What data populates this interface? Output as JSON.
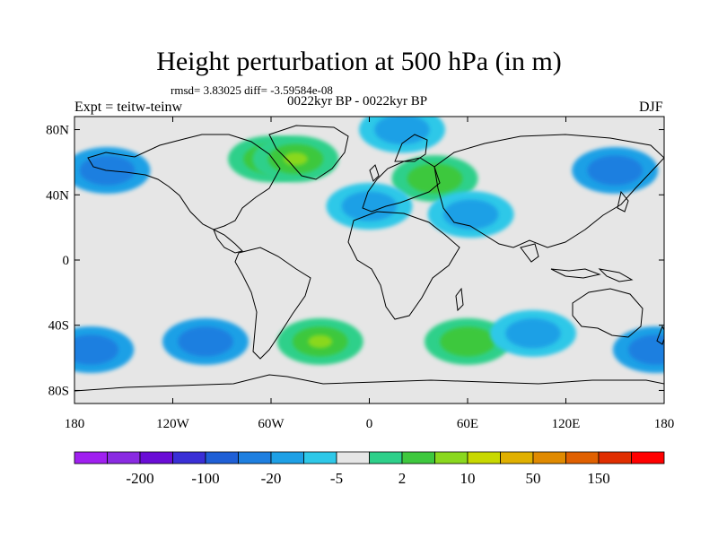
{
  "title": "Height perturbation at 500 hPa (in m)",
  "stats_line": "rmsd= 3.83025 diff= -3.59584e-08",
  "period_label": "0022kyr BP - 0022kyr BP",
  "expt_label": "Expt = teitw-teinw",
  "season_label": "DJF",
  "map": {
    "lat_ticks": [
      {
        "value": 80,
        "label": "80N"
      },
      {
        "value": 40,
        "label": "40N"
      },
      {
        "value": 0,
        "label": "0"
      },
      {
        "value": -40,
        "label": "40S"
      },
      {
        "value": -80,
        "label": "80S"
      }
    ],
    "lon_ticks": [
      {
        "value": -180,
        "label": "180"
      },
      {
        "value": -120,
        "label": "120W"
      },
      {
        "value": -60,
        "label": "60W"
      },
      {
        "value": 0,
        "label": "0"
      },
      {
        "value": 60,
        "label": "60E"
      },
      {
        "value": 120,
        "label": "120E"
      },
      {
        "value": 180,
        "label": "180"
      }
    ],
    "background_color": "#e6e6e6",
    "anomalies": [
      {
        "name": "arctic-canada-greenland-high",
        "lon": -60,
        "lat": 62,
        "level": 10
      },
      {
        "name": "greenland-peak",
        "lon": -45,
        "lat": 62,
        "level": 20
      },
      {
        "name": "north-pacific-low",
        "lon": -160,
        "lat": 55,
        "level": -20
      },
      {
        "name": "siberia-low",
        "lon": 150,
        "lat": 55,
        "level": -20
      },
      {
        "name": "europe-high",
        "lon": 40,
        "lat": 50,
        "level": 10
      },
      {
        "name": "nw-africa-low",
        "lon": 0,
        "lat": 33,
        "level": -5
      },
      {
        "name": "middle-east-low",
        "lon": 62,
        "lat": 28,
        "level": -5
      },
      {
        "name": "arctic-east-low",
        "lon": 20,
        "lat": 80,
        "level": -5
      },
      {
        "name": "south-pacific-low",
        "lon": -100,
        "lat": -50,
        "level": -20
      },
      {
        "name": "south-atlantic-high",
        "lon": -30,
        "lat": -50,
        "level": 20
      },
      {
        "name": "southern-ocean-high",
        "lon": 60,
        "lat": -50,
        "level": 10
      },
      {
        "name": "indian-ocean-low",
        "lon": 100,
        "lat": -45,
        "level": -5
      },
      {
        "name": "south-pacific-west-low",
        "lon": -170,
        "lat": -55,
        "level": -20
      },
      {
        "name": "east-pacific-low",
        "lon": 175,
        "lat": -55,
        "level": -20
      }
    ]
  },
  "colorbar": {
    "colors": [
      "#a020f0",
      "#8a2be2",
      "#6a0dd6",
      "#3a2fd6",
      "#1f5fd6",
      "#1e7fe0",
      "#1ea0e6",
      "#2ec8e8",
      "#e6e6e6",
      "#2ed08a",
      "#3ec83e",
      "#8ad81e",
      "#c8d800",
      "#e0b000",
      "#e08a00",
      "#e06000",
      "#e02e00",
      "#ff0000"
    ],
    "labels": [
      "-200",
      "-100",
      "-20",
      "-5",
      "2",
      "10",
      "50",
      "150"
    ]
  }
}
